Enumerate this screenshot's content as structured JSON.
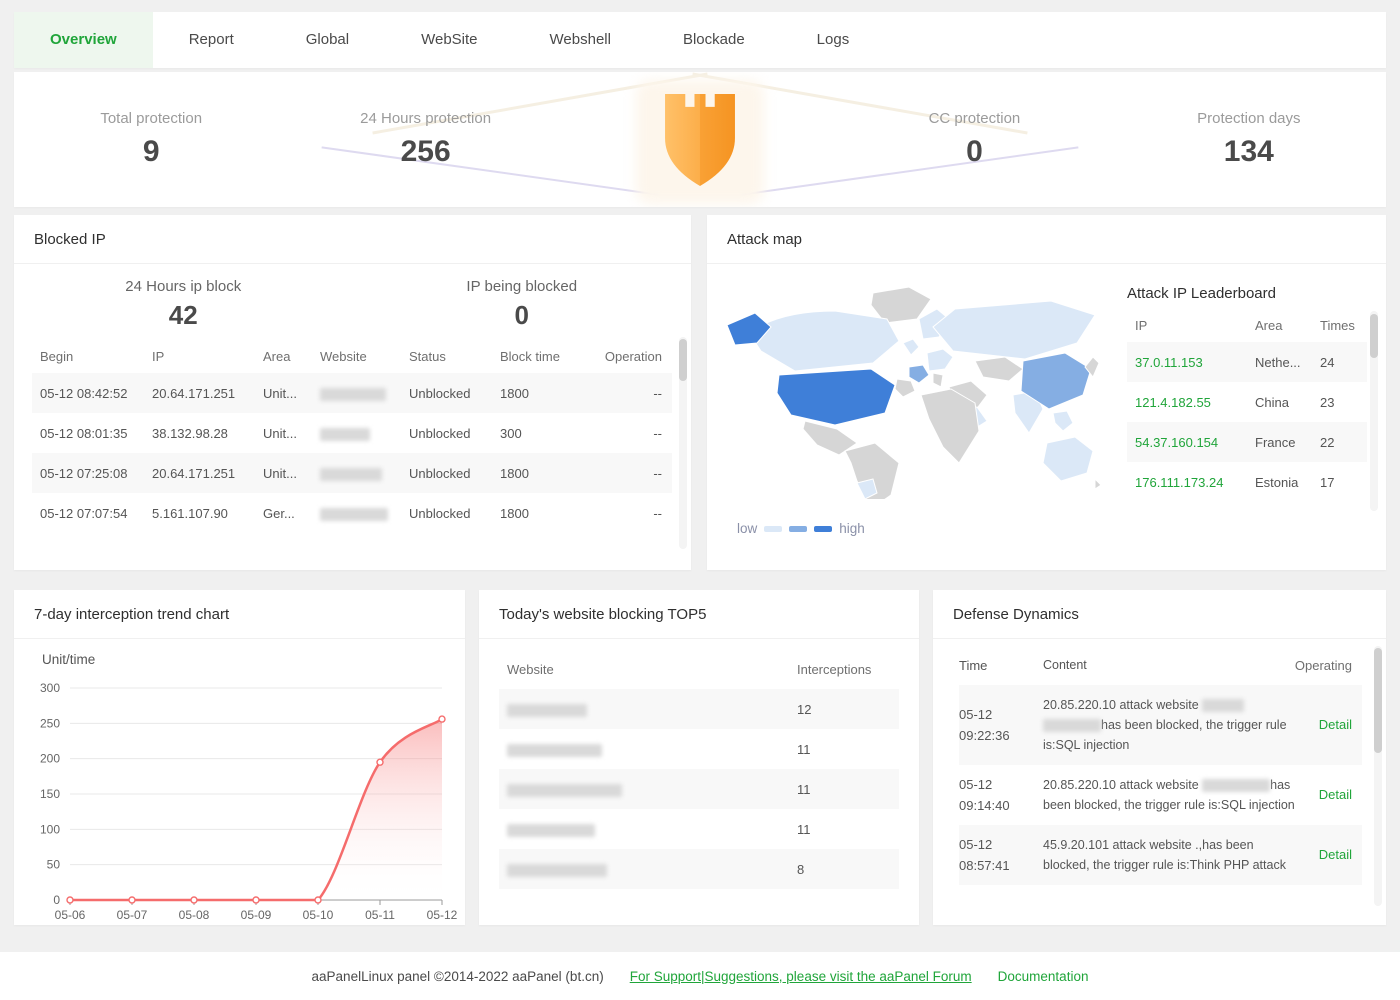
{
  "colors": {
    "accent_green": "#20a53a",
    "line_red": "#f56c6c",
    "map_low": "#dbe8f7",
    "map_mid": "#85aee3",
    "map_high": "#3f7fd8",
    "map_none": "#d6d6d6"
  },
  "tabs": [
    {
      "label": "Overview",
      "active": true
    },
    {
      "label": "Report",
      "active": false
    },
    {
      "label": "Global",
      "active": false
    },
    {
      "label": "WebSite",
      "active": false
    },
    {
      "label": "Webshell",
      "active": false
    },
    {
      "label": "Blockade",
      "active": false
    },
    {
      "label": "Logs",
      "active": false
    }
  ],
  "stats": [
    {
      "label": "Total protection",
      "value": "9"
    },
    {
      "label": "24 Hours protection",
      "value": "256"
    },
    {
      "label": "CC protection",
      "value": "0"
    },
    {
      "label": "Protection days",
      "value": "134"
    }
  ],
  "blocked_ip": {
    "title": "Blocked IP",
    "counters": [
      {
        "label": "24 Hours ip block",
        "value": "42"
      },
      {
        "label": "IP being blocked",
        "value": "0"
      }
    ],
    "headers": [
      "Begin",
      "IP",
      "Area",
      "Website",
      "Status",
      "Block time",
      "Operation"
    ],
    "rows": [
      {
        "begin": "05-12 08:42:52",
        "ip": "20.64.171.251",
        "area": "Unit...",
        "website": "",
        "status": "Unblocked",
        "block_time": "1800",
        "operation": "--"
      },
      {
        "begin": "05-12 08:01:35",
        "ip": "38.132.98.28",
        "area": "Unit...",
        "website": "",
        "status": "Unblocked",
        "block_time": "300",
        "operation": "--"
      },
      {
        "begin": "05-12 07:25:08",
        "ip": "20.64.171.251",
        "area": "Unit...",
        "website": "",
        "status": "Unblocked",
        "block_time": "1800",
        "operation": "--"
      },
      {
        "begin": "05-12 07:07:54",
        "ip": "5.161.107.90",
        "area": "Ger...",
        "website": "",
        "status": "Unblocked",
        "block_time": "1800",
        "operation": "--"
      }
    ]
  },
  "attack_map": {
    "title": "Attack map",
    "legend": {
      "low": "low",
      "high": "high"
    },
    "leaderboard": {
      "title": "Attack IP Leaderboard",
      "headers": [
        "IP",
        "Area",
        "Times"
      ],
      "rows": [
        {
          "ip": "37.0.11.153",
          "area": "Nethe...",
          "times": "24"
        },
        {
          "ip": "121.4.182.55",
          "area": "China",
          "times": "23"
        },
        {
          "ip": "54.37.160.154",
          "area": "France",
          "times": "22"
        },
        {
          "ip": "176.111.173.24",
          "area": "Estonia",
          "times": "17"
        }
      ]
    }
  },
  "chart_data": {
    "type": "area",
    "title": "7-day interception trend chart",
    "unit_label": "Unit/time",
    "x": [
      "05-06",
      "05-07",
      "05-08",
      "05-09",
      "05-10",
      "05-11",
      "05-12"
    ],
    "values": [
      0,
      0,
      0,
      0,
      0,
      195,
      256
    ],
    "yticks": [
      0,
      50,
      100,
      150,
      200,
      250,
      300
    ],
    "ylim": [
      0,
      300
    ],
    "xlabel": "",
    "ylabel": "Unit/time",
    "grid": true,
    "legend_position": "none",
    "line_color": "#f56c6c"
  },
  "top5": {
    "title": "Today's website blocking TOP5",
    "headers": [
      "Website",
      "Interceptions"
    ],
    "rows": [
      {
        "website": "",
        "interceptions": "12"
      },
      {
        "website": "",
        "interceptions": "11"
      },
      {
        "website": "",
        "interceptions": "11"
      },
      {
        "website": "",
        "interceptions": "11"
      },
      {
        "website": "",
        "interceptions": "8"
      }
    ]
  },
  "defense": {
    "title": "Defense Dynamics",
    "headers": [
      "Time",
      "Content",
      "Operating"
    ],
    "action_label": "Detail",
    "rows": [
      {
        "time_date": "05-12",
        "time_clock": "09:22:36",
        "segments": [
          {
            "text": "20.85.220.10 attack website "
          },
          {
            "redacted_width": 42
          },
          {
            "text": " "
          },
          {
            "redacted_width": 58
          },
          {
            "text": "has been blocked, the trigger rule is:SQL injection"
          }
        ]
      },
      {
        "time_date": "05-12",
        "time_clock": "09:14:40",
        "segments": [
          {
            "text": "20.85.220.10 attack website "
          },
          {
            "redacted_width": 68
          },
          {
            "text": "has been blocked, the trigger rule is:SQL injection"
          }
        ]
      },
      {
        "time_date": "05-12",
        "time_clock": "08:57:41",
        "segments": [
          {
            "text": "45.9.20.101 attack website .,has been blocked, the trigger rule is:Think PHP attack"
          }
        ]
      }
    ]
  },
  "footer": {
    "copyright": "aaPanelLinux panel ©2014-2022 aaPanel (bt.cn)",
    "support": "For Support|Suggestions, please visit the aaPanel Forum",
    "docs": "Documentation"
  }
}
